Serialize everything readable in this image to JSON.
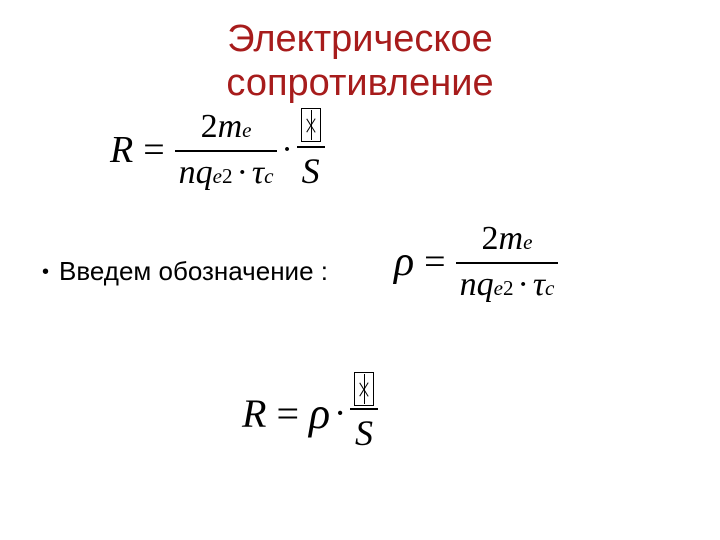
{
  "title_line1": "Электрическое",
  "title_line2": "сопротивление",
  "bullet_text": "Введем обозначение :",
  "colors": {
    "title": "#a71c1c",
    "text": "#000000",
    "background": "#ffffff"
  },
  "eq1": {
    "lhs": "R",
    "numer_coeff": "2",
    "numer_var": "m",
    "numer_sub": "e",
    "denom_n": "n",
    "denom_q": "q",
    "denom_q_sub": "e",
    "denom_q_sup": "2",
    "denom_tau": "τ",
    "denom_tau_sub": "c",
    "rhs_num_placeholder": "□",
    "rhs_den": "S"
  },
  "eq2": {
    "lhs": "ρ",
    "numer_coeff": "2",
    "numer_var": "m",
    "numer_sub": "e",
    "denom_n": "n",
    "denom_q": "q",
    "denom_q_sub": "e",
    "denom_q_sup": "2",
    "denom_tau": "τ",
    "denom_tau_sub": "c"
  },
  "eq3": {
    "lhs": "R",
    "rho": "ρ",
    "rhs_num_placeholder": "□",
    "rhs_den": "S"
  }
}
